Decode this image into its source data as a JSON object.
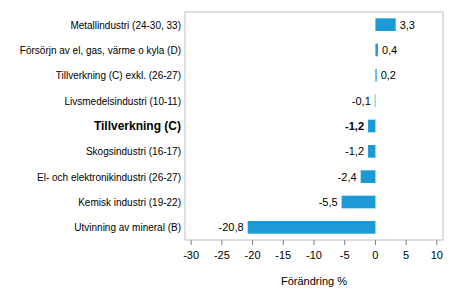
{
  "chart_data": {
    "type": "bar",
    "orientation": "horizontal",
    "categories": [
      "Metallindustri (24-30, 33)",
      "Försörjn av el, gas, värme o kyla (D)",
      "Tillverkning (C) exkl. (26-27)",
      "Livsmedelsindustri (10-11)",
      "Tillverkning (C)",
      "Skogsindustri (16-17)",
      "El- och elektronikindustri (26-27)",
      "Kemisk industri (19-22)",
      "Utvinning av mineral (B)"
    ],
    "values": [
      3.3,
      0.4,
      0.2,
      -0.1,
      -1.2,
      -1.2,
      -2.4,
      -5.5,
      -20.8
    ],
    "value_labels": [
      "3,3",
      "0,4",
      "0,2",
      "-0,1",
      "-1,2",
      "-1,2",
      "-2,4",
      "-5,5",
      "-20,8"
    ],
    "color": "#1b9ad6",
    "x_label": "Förändring %",
    "xlim": [
      -31,
      11
    ],
    "xticks": [
      -30,
      -25,
      -20,
      -15,
      -10,
      -5,
      0,
      5,
      10
    ],
    "grid": false,
    "data_labels": true
  }
}
